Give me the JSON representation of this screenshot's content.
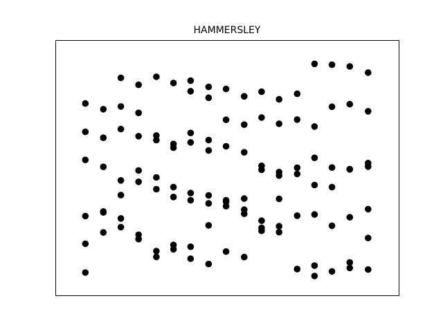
{
  "chart_data": {
    "type": "scatter",
    "title": "HAMMERSLEY",
    "xlabel": "",
    "ylabel": "",
    "xlim": [
      0,
      1
    ],
    "ylim": [
      0,
      1
    ],
    "grid": false,
    "axes_visible": false,
    "marker_color": "#000000",
    "series": [
      {
        "points": [
          [
            0.045,
            0.045
          ],
          [
            0.103,
            0.219
          ],
          [
            0.159,
            0.242
          ],
          [
            0.216,
            0.209
          ],
          [
            0.273,
            0.138
          ],
          [
            0.328,
            0.165
          ],
          [
            0.383,
            0.105
          ],
          [
            0.441,
            0.082
          ],
          [
            0.497,
            0.136
          ],
          [
            0.555,
            0.112
          ],
          [
            0.611,
            0.226
          ],
          [
            0.667,
            0.246
          ],
          [
            0.725,
            0.06
          ],
          [
            0.781,
            0.075
          ],
          [
            0.837,
            0.05
          ],
          [
            0.894,
            0.089
          ],
          [
            0.953,
            0.058
          ],
          [
            0.045,
            0.17
          ],
          [
            0.103,
            0.306
          ],
          [
            0.159,
            0.28
          ],
          [
            0.216,
            0.19
          ],
          [
            0.273,
            0.113
          ],
          [
            0.328,
            0.146
          ],
          [
            0.383,
            0.157
          ],
          [
            0.441,
            0.25
          ],
          [
            0.497,
            0.333
          ],
          [
            0.555,
            0.3
          ],
          [
            0.611,
            0.239
          ],
          [
            0.667,
            0.22
          ],
          [
            0.725,
            0.06
          ],
          [
            0.781,
            0.03
          ],
          [
            0.894,
            0.065
          ],
          [
            0.953,
            0.195
          ],
          [
            0.045,
            0.29
          ],
          [
            0.103,
            0.31
          ],
          [
            0.159,
            0.381
          ],
          [
            0.216,
            0.439
          ],
          [
            0.273,
            0.407
          ],
          [
            0.328,
            0.373
          ],
          [
            0.383,
            0.359
          ],
          [
            0.441,
            0.345
          ],
          [
            0.497,
            0.352
          ],
          [
            0.555,
            0.318
          ],
          [
            0.611,
            0.27
          ],
          [
            0.667,
            0.365
          ],
          [
            0.725,
            0.292
          ],
          [
            0.781,
            0.297
          ],
          [
            0.837,
            0.248
          ],
          [
            0.894,
            0.285
          ],
          [
            0.953,
            0.32
          ],
          [
            0.045,
            0.534
          ],
          [
            0.103,
            0.504
          ],
          [
            0.159,
            0.445
          ],
          [
            0.216,
            0.488
          ],
          [
            0.273,
            0.458
          ],
          [
            0.328,
            0.416
          ],
          [
            0.383,
            0.39
          ],
          [
            0.441,
            0.38
          ],
          [
            0.497,
            0.359
          ],
          [
            0.555,
            0.366
          ],
          [
            0.611,
            0.491
          ],
          [
            0.667,
            0.466
          ],
          [
            0.725,
            0.5
          ],
          [
            0.781,
            0.425
          ],
          [
            0.837,
            0.416
          ],
          [
            0.894,
            0.494
          ],
          [
            0.953,
            0.52
          ],
          [
            0.045,
            0.656
          ],
          [
            0.103,
            0.63
          ],
          [
            0.159,
            0.668
          ],
          [
            0.216,
            0.637
          ],
          [
            0.273,
            0.64
          ],
          [
            0.328,
            0.587
          ],
          [
            0.383,
            0.61
          ],
          [
            0.441,
            0.575
          ],
          [
            0.497,
            0.593
          ],
          [
            0.555,
            0.567
          ],
          [
            0.611,
            0.508
          ],
          [
            0.667,
            0.481
          ],
          [
            0.725,
            0.473
          ],
          [
            0.781,
            0.543
          ],
          [
            0.837,
            0.501
          ],
          [
            0.894,
            0.493
          ],
          [
            0.953,
            0.505
          ],
          [
            0.045,
            0.779
          ],
          [
            0.103,
            0.754
          ],
          [
            0.159,
            0.766
          ],
          [
            0.216,
            0.738
          ],
          [
            0.273,
            0.62
          ],
          [
            0.328,
            0.603
          ],
          [
            0.383,
            0.651
          ],
          [
            0.441,
            0.62
          ],
          [
            0.497,
            0.708
          ],
          [
            0.555,
            0.687
          ],
          [
            0.611,
            0.718
          ],
          [
            0.667,
            0.691
          ],
          [
            0.725,
            0.709
          ],
          [
            0.781,
            0.679
          ],
          [
            0.837,
            0.765
          ],
          [
            0.894,
            0.776
          ],
          [
            0.953,
            0.745
          ],
          [
            0.159,
            0.89
          ],
          [
            0.216,
            0.86
          ],
          [
            0.273,
            0.895
          ],
          [
            0.328,
            0.868
          ],
          [
            0.383,
            0.878
          ],
          [
            0.383,
            0.832
          ],
          [
            0.441,
            0.851
          ],
          [
            0.441,
            0.804
          ],
          [
            0.497,
            0.842
          ],
          [
            0.555,
            0.81
          ],
          [
            0.611,
            0.83
          ],
          [
            0.667,
            0.797
          ],
          [
            0.725,
            0.821
          ],
          [
            0.781,
            0.951
          ],
          [
            0.837,
            0.947
          ],
          [
            0.894,
            0.94
          ],
          [
            0.953,
            0.913
          ]
        ]
      }
    ]
  }
}
